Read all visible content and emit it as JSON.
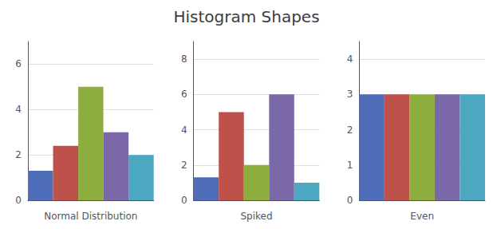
{
  "title": "Histogram Shapes",
  "chart_data": [
    {
      "type": "bar",
      "xlabel": "Normal Distribution",
      "categories": [
        null,
        null,
        null,
        null,
        null
      ],
      "values": [
        1.3,
        2.4,
        5.0,
        3.0,
        2.0
      ],
      "colors": [
        "#4F6CB8",
        "#BE514A",
        "#8EAD3F",
        "#7B68A8",
        "#4BA8C0"
      ],
      "ylim": [
        0,
        7
      ],
      "yticks": [
        0,
        2,
        4,
        6
      ],
      "grid": true,
      "tick_labels": "y"
    },
    {
      "type": "bar",
      "xlabel": "Spiked",
      "categories": [
        null,
        null,
        null,
        null,
        null
      ],
      "values": [
        1.3,
        5.0,
        2.0,
        6.0,
        1.0
      ],
      "colors": [
        "#4F6CB8",
        "#BE514A",
        "#8EAD3F",
        "#7B68A8",
        "#4BA8C0"
      ],
      "ylim": [
        0,
        9
      ],
      "yticks": [
        0,
        2,
        4,
        6,
        8
      ],
      "grid": true,
      "tick_labels": "y"
    },
    {
      "type": "bar",
      "xlabel": "Even",
      "categories": [
        null,
        null,
        null,
        null,
        null
      ],
      "values": [
        3.0,
        3.0,
        3.0,
        3.0,
        3.0
      ],
      "colors": [
        "#4F6CB8",
        "#BE514A",
        "#8EAD3F",
        "#7B68A8",
        "#4BA8C0"
      ],
      "ylim": [
        0,
        4.5
      ],
      "yticks": [
        0,
        1,
        2,
        3,
        4
      ],
      "grid": true,
      "tick_labels": "y"
    }
  ]
}
